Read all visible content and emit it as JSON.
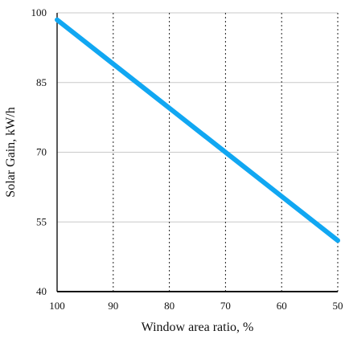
{
  "chart_data": {
    "type": "line",
    "title": "",
    "xlabel": "Window area ratio, %",
    "ylabel": "Solar Gain, kW/h",
    "x_ticks": [
      100,
      90,
      80,
      70,
      60,
      50
    ],
    "y_ticks": [
      40,
      55,
      70,
      85,
      100
    ],
    "xlim": [
      100,
      50
    ],
    "ylim": [
      40,
      100
    ],
    "x_reversed": true,
    "grid": {
      "horizontal": "solid",
      "vertical": "dotted"
    },
    "series": [
      {
        "x": [
          100,
          90,
          80,
          70,
          60,
          50
        ],
        "values": [
          98.5,
          89,
          79.5,
          70,
          60.5,
          51
        ],
        "color": "#11a7f2"
      }
    ]
  }
}
